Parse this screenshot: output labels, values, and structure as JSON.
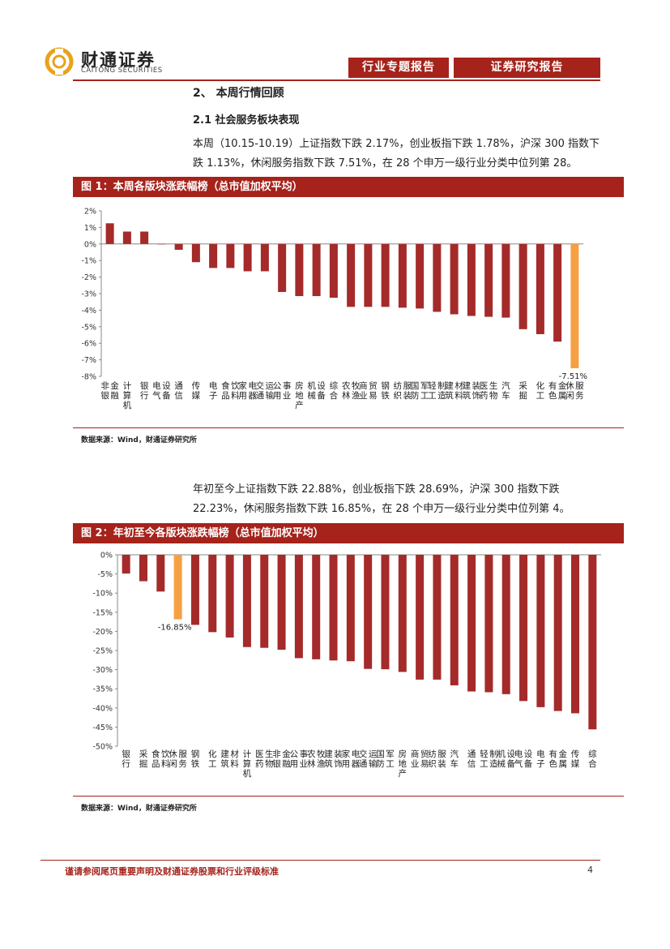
{
  "header": {
    "brand_cn": "财通证券",
    "brand_en": "CAITONG SECURITIES",
    "tag1": "行业专题报告",
    "tag2": "证券研究报告"
  },
  "section_title": "2、 本周行情回顾",
  "subsection_title": "2.1  社会服务板块表现",
  "paragraph1": "本周（10.15-10.19）上证指数下跌 2.17%，创业板指下跌 1.78%，沪深 300 指数下跌 1.13%，休闲服务指数下跌 7.51%，在 28 个申万一级行业分类中位列第 28。",
  "paragraph2": "年初至今上证指数下跌 22.88%，创业板指下跌 28.69%，沪深 300 指数下跌 22.23%，休闲服务指数下跌 16.85%，在 28 个申万一级行业分类中位列第 4。",
  "figure1_title": "图 1：本周各版块涨跌幅榜（总市值加权平均）",
  "figure2_title": "图 2：年初至今各版块涨跌幅榜（总市值加权平均）",
  "source1": "数据来源：Wind，财通证券研究所",
  "source2": "数据来源：Wind，财通证券研究所",
  "footer": {
    "disclaimer": "谨请参阅尾页重要声明及财通证券股票和行业评级标准",
    "page_number": "4"
  },
  "colors": {
    "accent": "#a5231b",
    "bar": "#a52a2a",
    "highlight": "#f5a043"
  },
  "chart_data": [
    {
      "type": "bar",
      "title": "图 1：本周各版块涨跌幅榜（总市值加权平均）",
      "ylim": [
        -8,
        2
      ],
      "yticks": [
        2,
        1,
        0,
        -1,
        -2,
        -3,
        -4,
        -5,
        -6,
        -7,
        -8
      ],
      "ytick_labels": [
        "2%",
        "1%",
        "0%",
        "-1%",
        "-2%",
        "-3%",
        "-4%",
        "-5%",
        "-6%",
        "-7%",
        "-8%"
      ],
      "categories": [
        "非银金融",
        "计算机",
        "银行",
        "电气设备",
        "通信",
        "传媒",
        "电子",
        "食品饮料",
        "家用电器",
        "交通运输",
        "公用事业",
        "房地产",
        "机械设备",
        "综合",
        "农林牧渔",
        "商业贸易",
        "钢铁",
        "纺织服装",
        "国防军工",
        "轻工制造",
        "建筑材料",
        "建筑装饰",
        "医药生物",
        "汽车",
        "采掘",
        "化工",
        "有色金属",
        "休闲服务"
      ],
      "values": [
        1.25,
        0.75,
        0.75,
        0.0,
        -0.35,
        -1.1,
        -1.45,
        -1.45,
        -1.65,
        -1.65,
        -2.9,
        -3.15,
        -3.15,
        -3.25,
        -3.8,
        -3.8,
        -3.8,
        -3.85,
        -3.9,
        -4.1,
        -4.25,
        -4.35,
        -4.4,
        -4.45,
        -5.15,
        -5.45,
        -5.9,
        -7.51
      ],
      "highlight_category": "休闲服务",
      "annotation": "-7.51%"
    },
    {
      "type": "bar",
      "title": "图 2：年初至今各版块涨跌幅榜（总市值加权平均）",
      "ylim": [
        -50,
        0
      ],
      "yticks": [
        0,
        -5,
        -10,
        -15,
        -20,
        -25,
        -30,
        -35,
        -40,
        -45,
        -50
      ],
      "ytick_labels": [
        "0%",
        "-5%",
        "-10%",
        "-15%",
        "-20%",
        "-25%",
        "-30%",
        "-35%",
        "-40%",
        "-45%",
        "-50%"
      ],
      "categories": [
        "银行",
        "采掘",
        "食品饮料",
        "休闲服务",
        "钢铁",
        "化工",
        "建筑材料",
        "计算机",
        "医药生物",
        "非银金融",
        "公用事业",
        "农林牧渔",
        "建筑装饰",
        "家用电器",
        "交通运输",
        "国防军工",
        "房地产",
        "商业贸易",
        "纺织服装",
        "汽车",
        "通信",
        "轻工制造",
        "机械设备",
        "电气设备",
        "电子",
        "有色金属",
        "传媒",
        "综合"
      ],
      "values": [
        -4.9,
        -6.9,
        -9.6,
        -16.85,
        -18.3,
        -20.2,
        -21.6,
        -24.1,
        -24.3,
        -24.8,
        -27.0,
        -27.3,
        -27.6,
        -27.8,
        -29.8,
        -29.9,
        -30.6,
        -32.6,
        -32.6,
        -34.1,
        -35.7,
        -35.9,
        -36.4,
        -38.2,
        -39.8,
        -40.8,
        -41.4,
        -45.6
      ],
      "highlight_category": "休闲服务",
      "annotation": "-16.85%"
    }
  ]
}
